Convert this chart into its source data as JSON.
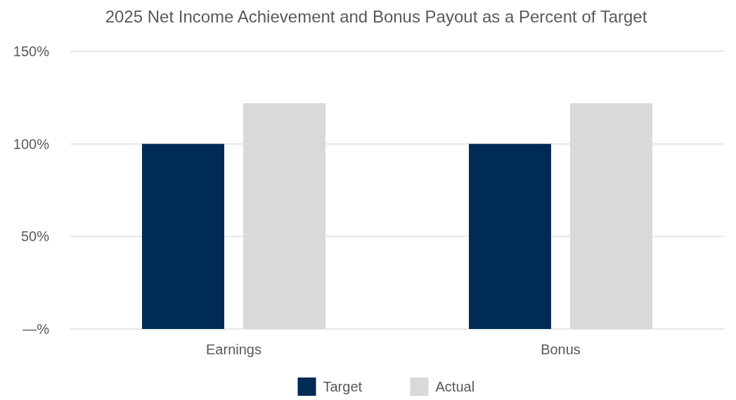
{
  "chart_data": {
    "type": "bar",
    "title": "2025 Net Income Achievement and Bonus Payout as a Percent of Target",
    "categories": [
      "Earnings",
      "Bonus"
    ],
    "series": [
      {
        "name": "Target",
        "color": "#002b54",
        "values": [
          100,
          100
        ]
      },
      {
        "name": "Actual",
        "color": "#d9d9d9",
        "values": [
          122,
          122
        ]
      }
    ],
    "ylim": [
      0,
      150
    ],
    "yticks": [
      {
        "value": 0,
        "label": "—%"
      },
      {
        "value": 50,
        "label": "50%"
      },
      {
        "value": 100,
        "label": "100%"
      },
      {
        "value": 150,
        "label": "150%"
      }
    ],
    "grid": "y",
    "legend": "bottom"
  }
}
